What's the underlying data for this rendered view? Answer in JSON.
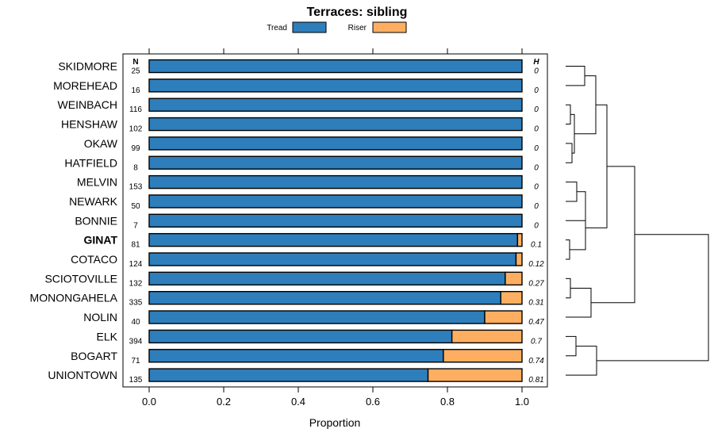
{
  "chart_data": {
    "type": "bar",
    "stacked": true,
    "orientation": "horizontal",
    "title": "Terraces: sibling",
    "xlabel": "Proportion",
    "xlim": [
      0,
      1
    ],
    "xticks": [
      "0.0",
      "0.2",
      "0.4",
      "0.6",
      "0.8",
      "1.0"
    ],
    "n_header": "N",
    "h_header": "H",
    "legend_position": "top",
    "series": [
      {
        "name": "Tread",
        "color": "#2e7ebb"
      },
      {
        "name": "Riser",
        "color": "#fdae61"
      }
    ],
    "categories": [
      {
        "label": "SKIDMORE",
        "n": "25",
        "tread": 1.0,
        "riser": 0.0,
        "h": "0",
        "bold": false
      },
      {
        "label": "MOREHEAD",
        "n": "16",
        "tread": 1.0,
        "riser": 0.0,
        "h": "0",
        "bold": false
      },
      {
        "label": "WEINBACH",
        "n": "116",
        "tread": 1.0,
        "riser": 0.0,
        "h": "0",
        "bold": false
      },
      {
        "label": "HENSHAW",
        "n": "102",
        "tread": 1.0,
        "riser": 0.0,
        "h": "0",
        "bold": false
      },
      {
        "label": "OKAW",
        "n": "99",
        "tread": 1.0,
        "riser": 0.0,
        "h": "0",
        "bold": false
      },
      {
        "label": "HATFIELD",
        "n": "8",
        "tread": 1.0,
        "riser": 0.0,
        "h": "0",
        "bold": false
      },
      {
        "label": "MELVIN",
        "n": "153",
        "tread": 1.0,
        "riser": 0.0,
        "h": "0",
        "bold": false
      },
      {
        "label": "NEWARK",
        "n": "50",
        "tread": 1.0,
        "riser": 0.0,
        "h": "0",
        "bold": false
      },
      {
        "label": "BONNIE",
        "n": "7",
        "tread": 1.0,
        "riser": 0.0,
        "h": "0",
        "bold": false
      },
      {
        "label": "GINAT",
        "n": "81",
        "tread": 0.988,
        "riser": 0.012,
        "h": "0.1",
        "bold": true
      },
      {
        "label": "COTACO",
        "n": "124",
        "tread": 0.984,
        "riser": 0.016,
        "h": "0.12",
        "bold": false
      },
      {
        "label": "SCIOTOVILLE",
        "n": "132",
        "tread": 0.955,
        "riser": 0.045,
        "h": "0.27",
        "bold": false
      },
      {
        "label": "MONONGAHELA",
        "n": "335",
        "tread": 0.943,
        "riser": 0.057,
        "h": "0.31",
        "bold": false
      },
      {
        "label": "NOLIN",
        "n": "40",
        "tread": 0.9,
        "riser": 0.1,
        "h": "0.47",
        "bold": false
      },
      {
        "label": "ELK",
        "n": "394",
        "tread": 0.812,
        "riser": 0.188,
        "h": "0.7",
        "bold": false
      },
      {
        "label": "BOGART",
        "n": "71",
        "tread": 0.789,
        "riser": 0.211,
        "h": "0.74",
        "bold": false
      },
      {
        "label": "UNIONTOWN",
        "n": "135",
        "tread": 0.748,
        "riser": 0.252,
        "h": "0.81",
        "bold": false
      }
    ],
    "dendrogram": {
      "leaves": [
        "SKIDMORE",
        "MOREHEAD",
        "WEINBACH",
        "HENSHAW",
        "OKAW",
        "HATFIELD",
        "MELVIN",
        "NEWARK",
        "BONNIE",
        "GINAT",
        "COTACO",
        "SCIOTOVILLE",
        "MONONGAHELA",
        "NOLIN",
        "ELK",
        "BOGART",
        "UNIONTOWN"
      ]
    }
  }
}
